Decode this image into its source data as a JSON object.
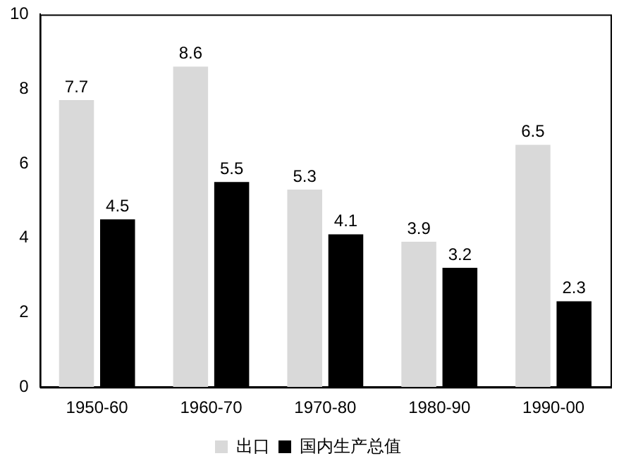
{
  "chart_data": {
    "type": "bar",
    "categories": [
      "1950-60",
      "1960-70",
      "1970-80",
      "1980-90",
      "1990-00"
    ],
    "series": [
      {
        "name": "出口",
        "color": "#d9d9d9",
        "values": [
          7.7,
          8.6,
          5.3,
          3.9,
          6.5
        ]
      },
      {
        "name": "国内生产总值",
        "color": "#000000",
        "values": [
          4.5,
          5.5,
          4.1,
          3.2,
          2.3
        ]
      }
    ],
    "ylim": [
      0,
      10
    ],
    "yticks": [
      0,
      2,
      4,
      6,
      8,
      10
    ],
    "grid": false,
    "legend": "bottom",
    "data_labels": true
  }
}
